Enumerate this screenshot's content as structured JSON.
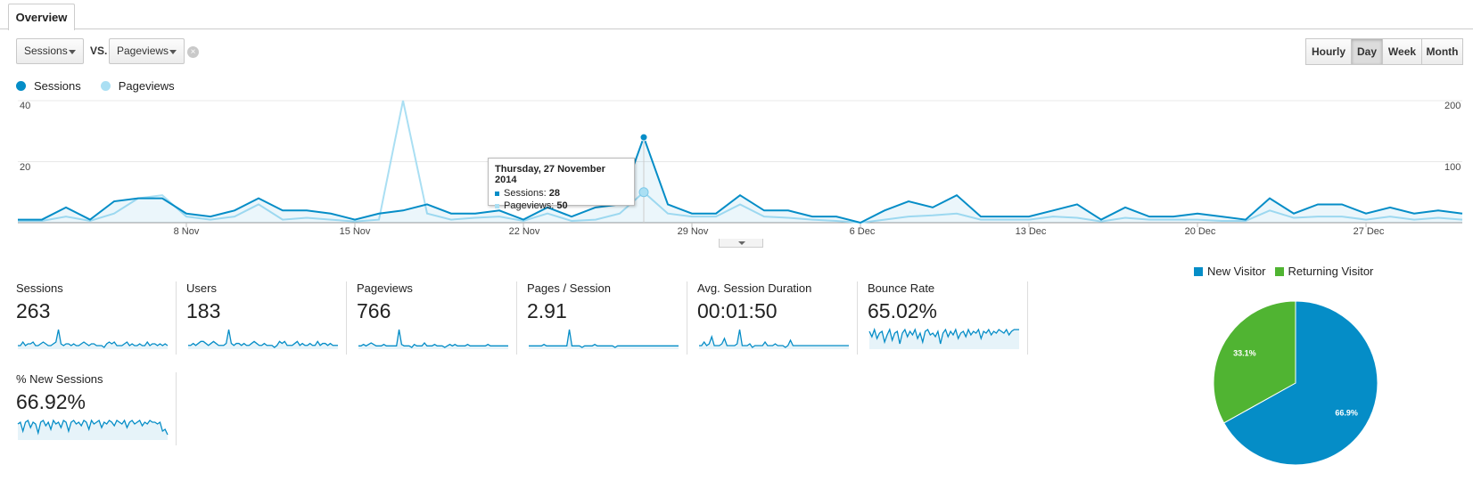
{
  "tabs": {
    "overview": "Overview"
  },
  "controls": {
    "metric1": "Sessions",
    "vs": "VS.",
    "metric2": "Pageviews",
    "clear": "×",
    "granularity": [
      "Hourly",
      "Day",
      "Week",
      "Month"
    ],
    "granularity_selected": "Day"
  },
  "colors": {
    "sessions": "#058dc7",
    "pageviews": "#aadff3",
    "new_visitor": "#058dc7",
    "returning_visitor": "#50b432"
  },
  "chart_data": {
    "type": "line",
    "legend": [
      "Sessions",
      "Pageviews"
    ],
    "y_left": {
      "ticks": [
        "20",
        "40"
      ],
      "lim": [
        0,
        40
      ]
    },
    "y_right": {
      "ticks": [
        "100",
        "200"
      ],
      "lim": [
        0,
        200
      ]
    },
    "x_ticks": [
      "8 Nov",
      "15 Nov",
      "22 Nov",
      "29 Nov",
      "6 Dec",
      "13 Dec",
      "20 Dec",
      "27 Dec"
    ],
    "x_start": "1 Nov",
    "series": [
      {
        "name": "Sessions",
        "axis": "left",
        "values": [
          1,
          1,
          5,
          1,
          7,
          8,
          8,
          3,
          2,
          4,
          8,
          4,
          4,
          3,
          1,
          3,
          4,
          6,
          3,
          3,
          4,
          1,
          5,
          2,
          5,
          6,
          28,
          6,
          3,
          3,
          9,
          4,
          4,
          2,
          2,
          0,
          4,
          7,
          5,
          9,
          2,
          2,
          2,
          4,
          6,
          1,
          5,
          2,
          2,
          3,
          2,
          1,
          8,
          3,
          6,
          6,
          3,
          5,
          3,
          4,
          3
        ],
        "tick_labels": []
      },
      {
        "name": "Pageviews",
        "axis": "right",
        "values": [
          3,
          3,
          10,
          3,
          15,
          40,
          45,
          10,
          5,
          10,
          30,
          5,
          8,
          5,
          2,
          5,
          200,
          15,
          5,
          8,
          10,
          3,
          15,
          3,
          5,
          15,
          50,
          15,
          10,
          10,
          30,
          10,
          8,
          5,
          3,
          0,
          5,
          10,
          12,
          15,
          5,
          5,
          5,
          10,
          8,
          2,
          8,
          5,
          5,
          5,
          3,
          3,
          20,
          8,
          10,
          10,
          5,
          10,
          5,
          8,
          5
        ]
      }
    ],
    "tooltip": {
      "date": "Thursday, 27 November 2014",
      "sessions_label": "Sessions:",
      "sessions_value": "28",
      "pageviews_label": "Pageviews:",
      "pageviews_value": "50"
    }
  },
  "metrics": [
    {
      "label": "Sessions",
      "value": "263",
      "spark": [
        1,
        1,
        3,
        1,
        2,
        2,
        3,
        1,
        1,
        2,
        3,
        2,
        1,
        1,
        2,
        3,
        10,
        2,
        1,
        2,
        2,
        1,
        2,
        1,
        1,
        2,
        3,
        2,
        1,
        2,
        2,
        1,
        1,
        1,
        0,
        2,
        3,
        2,
        3,
        1,
        1,
        1,
        2,
        3,
        1,
        2,
        1,
        1,
        2,
        1,
        1,
        3,
        1,
        2,
        2,
        1,
        2,
        1,
        2,
        1
      ]
    },
    {
      "label": "Users",
      "value": "183",
      "spark": [
        1,
        1,
        2,
        1,
        2,
        3,
        3,
        2,
        1,
        2,
        3,
        2,
        1,
        1,
        1,
        2,
        9,
        2,
        1,
        2,
        2,
        1,
        2,
        1,
        1,
        2,
        3,
        2,
        1,
        1,
        2,
        1,
        1,
        1,
        0,
        1,
        3,
        2,
        3,
        1,
        1,
        1,
        2,
        3,
        1,
        2,
        1,
        1,
        2,
        1,
        1,
        3,
        1,
        2,
        2,
        1,
        2,
        1,
        1,
        1
      ]
    },
    {
      "label": "Pageviews",
      "value": "766",
      "spark": [
        1,
        1,
        2,
        1,
        2,
        3,
        2,
        1,
        1,
        1,
        2,
        1,
        1,
        1,
        1,
        1,
        12,
        2,
        1,
        1,
        1,
        0,
        2,
        1,
        1,
        1,
        3,
        1,
        1,
        1,
        2,
        1,
        1,
        1,
        0,
        1,
        2,
        1,
        2,
        1,
        1,
        1,
        1,
        2,
        1,
        1,
        1,
        1,
        1,
        1,
        1,
        2,
        1,
        1,
        1,
        1,
        1,
        1,
        1,
        1
      ]
    },
    {
      "label": "Pages / Session",
      "value": "2.91",
      "spark": [
        1,
        1,
        1,
        1,
        1,
        1,
        2,
        1,
        1,
        1,
        1,
        1,
        1,
        1,
        1,
        1,
        12,
        1,
        1,
        1,
        1,
        0,
        1,
        1,
        1,
        1,
        2,
        1,
        1,
        1,
        1,
        1,
        1,
        1,
        0,
        1,
        1,
        1,
        1,
        1,
        1,
        1,
        1,
        1,
        1,
        1,
        1,
        1,
        1,
        1,
        1,
        1,
        1,
        1,
        1,
        1,
        1,
        1,
        1,
        1
      ]
    },
    {
      "label": "Avg. Session Duration",
      "value": "00:01:50",
      "spark": [
        1,
        1,
        3,
        1,
        2,
        6,
        1,
        1,
        1,
        2,
        5,
        1,
        1,
        1,
        1,
        2,
        10,
        1,
        1,
        1,
        2,
        0,
        1,
        1,
        1,
        1,
        3,
        1,
        1,
        1,
        2,
        1,
        1,
        1,
        0,
        1,
        4,
        1,
        1,
        1,
        1,
        1,
        1,
        1,
        1,
        1,
        1,
        1,
        1,
        1,
        1,
        1,
        1,
        1,
        1,
        1,
        1,
        1,
        1,
        1
      ]
    },
    {
      "label": "Bounce Rate",
      "value": "65.02%",
      "spark": [
        9,
        6,
        10,
        5,
        8,
        9,
        3,
        7,
        10,
        4,
        8,
        9,
        2,
        8,
        10,
        6,
        9,
        7,
        10,
        5,
        8,
        3,
        9,
        10,
        7,
        8,
        6,
        9,
        2,
        8,
        10,
        6,
        9,
        7,
        10,
        5,
        8,
        9,
        6,
        10,
        7,
        9,
        8,
        10,
        5,
        9,
        8,
        10,
        7,
        9,
        8,
        10,
        9,
        8,
        10,
        7,
        9,
        10,
        10,
        10
      ]
    },
    {
      "label": "% New Sessions",
      "value": "66.92%",
      "spark": [
        8,
        9,
        4,
        9,
        10,
        6,
        9,
        8,
        3,
        9,
        10,
        7,
        9,
        5,
        10,
        8,
        9,
        6,
        10,
        9,
        4,
        9,
        10,
        8,
        9,
        7,
        10,
        9,
        5,
        10,
        8,
        9,
        10,
        6,
        9,
        8,
        10,
        9,
        7,
        10,
        9,
        8,
        10,
        6,
        9,
        10,
        8,
        9,
        10,
        7,
        9,
        8,
        10,
        9,
        9,
        8,
        9,
        4,
        5,
        2
      ]
    }
  ],
  "pie": {
    "legend": [
      "New Visitor",
      "Returning Visitor"
    ],
    "slices": [
      {
        "name": "New Visitor",
        "value": 66.9,
        "label": "66.9%"
      },
      {
        "name": "Returning Visitor",
        "value": 33.1,
        "label": "33.1%"
      }
    ]
  }
}
